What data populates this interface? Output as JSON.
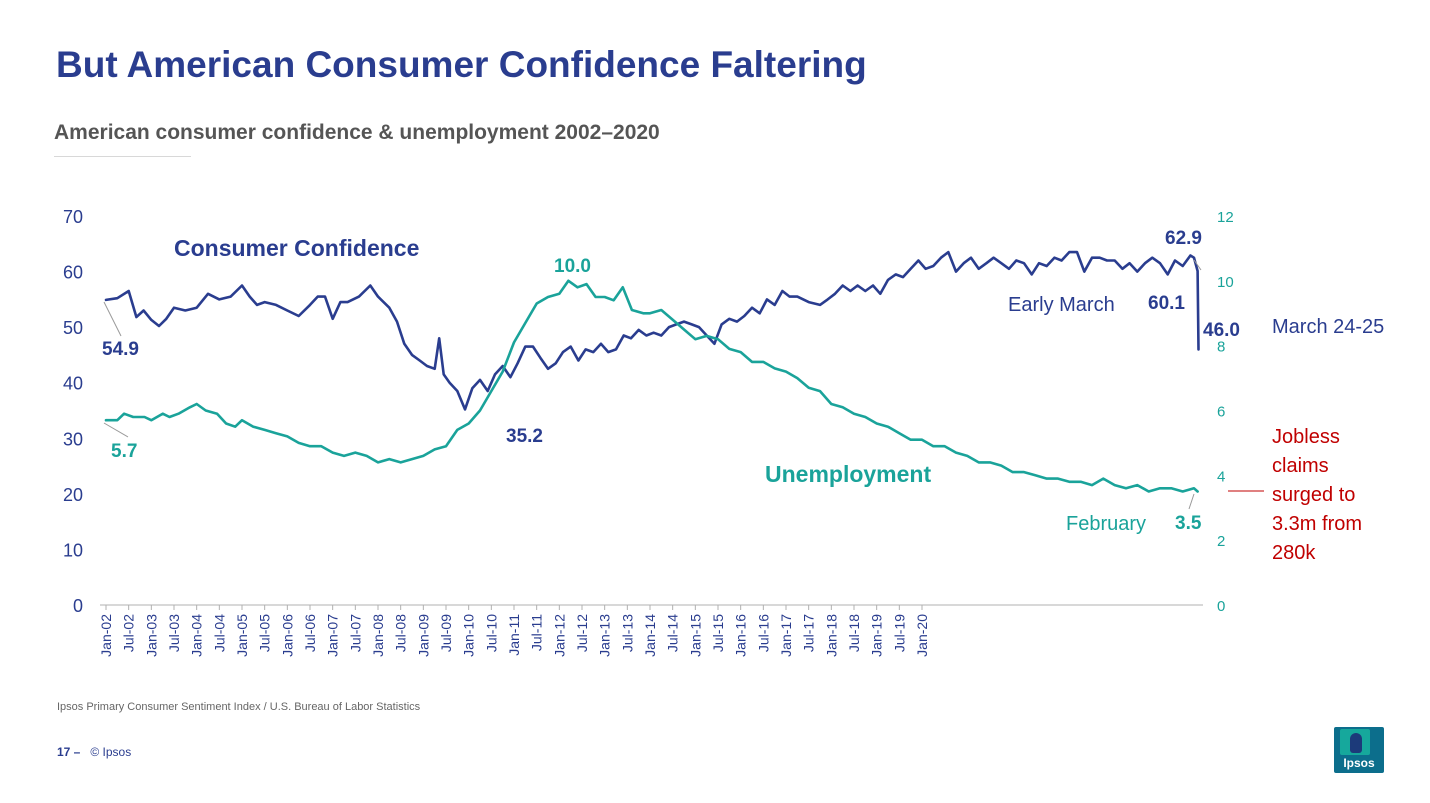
{
  "title": "But American Consumer Confidence Faltering",
  "subtitle": "American consumer confidence & unemployment 2002–2020",
  "source": "Ipsos Primary Consumer Sentiment Index / U.S. Bureau of Labor Statistics",
  "footer": {
    "page": "17 –",
    "copyright": "© Ipsos"
  },
  "logo": {
    "text": "Ipsos"
  },
  "colors": {
    "confidence": "#2a3d8f",
    "unemployment": "#1aa39a",
    "jobless": "#c00000",
    "axis_gray": "#888888"
  },
  "chart_data": {
    "type": "line",
    "title": "American consumer confidence & unemployment 2002–2020",
    "grid": false,
    "left_axis": {
      "range": [
        0,
        70
      ],
      "ticks": [
        "0",
        "10",
        "20",
        "30",
        "40",
        "50",
        "60",
        "70"
      ]
    },
    "right_axis": {
      "range": [
        0,
        12
      ],
      "ticks": [
        "0",
        "2",
        "4",
        "6",
        "8",
        "10",
        "12"
      ]
    },
    "x_tick_labels": [
      "Jan-02",
      "Jul-02",
      "Jan-03",
      "Jul-03",
      "Jan-04",
      "Jul-04",
      "Jan-05",
      "Jul-05",
      "Jan-06",
      "Jul-06",
      "Jan-07",
      "Jul-07",
      "Jan-08",
      "Jul-08",
      "Jan-09",
      "Jul-09",
      "Jan-10",
      "Jul-10",
      "Jan-11",
      "Jul-11",
      "Jan-12",
      "Jul-12",
      "Jan-13",
      "Jul-13",
      "Jan-14",
      "Jul-14",
      "Jan-15",
      "Jul-15",
      "Jan-16",
      "Jul-16",
      "Jan-17",
      "Jul-17",
      "Jan-18",
      "Jul-18",
      "Jan-19",
      "Jul-19",
      "Jan-20"
    ],
    "series": [
      {
        "name": "Consumer Confidence",
        "axis": "left",
        "points": [
          [
            2002.0,
            54.9
          ],
          [
            2002.25,
            55.2
          ],
          [
            2002.5,
            56.5
          ],
          [
            2002.67,
            51.8
          ],
          [
            2002.83,
            53.0
          ],
          [
            2003.0,
            51.3
          ],
          [
            2003.17,
            50.2
          ],
          [
            2003.33,
            51.5
          ],
          [
            2003.5,
            53.5
          ],
          [
            2003.75,
            53.0
          ],
          [
            2004.0,
            53.5
          ],
          [
            2004.25,
            56.0
          ],
          [
            2004.5,
            55.0
          ],
          [
            2004.75,
            55.5
          ],
          [
            2005.0,
            57.5
          ],
          [
            2005.17,
            55.5
          ],
          [
            2005.33,
            54.0
          ],
          [
            2005.5,
            54.5
          ],
          [
            2005.75,
            54.0
          ],
          [
            2006.0,
            53.0
          ],
          [
            2006.25,
            52.0
          ],
          [
            2006.5,
            54.0
          ],
          [
            2006.67,
            55.5
          ],
          [
            2006.83,
            55.5
          ],
          [
            2007.0,
            51.5
          ],
          [
            2007.17,
            54.5
          ],
          [
            2007.33,
            54.5
          ],
          [
            2007.58,
            55.5
          ],
          [
            2007.83,
            57.5
          ],
          [
            2008.0,
            55.5
          ],
          [
            2008.25,
            53.5
          ],
          [
            2008.42,
            51.0
          ],
          [
            2008.58,
            47.0
          ],
          [
            2008.75,
            45.0
          ],
          [
            2008.92,
            44.0
          ],
          [
            2009.08,
            43.0
          ],
          [
            2009.25,
            42.5
          ],
          [
            2009.35,
            48.0
          ],
          [
            2009.45,
            41.5
          ],
          [
            2009.58,
            40.0
          ],
          [
            2009.75,
            38.5
          ],
          [
            2009.92,
            35.2
          ],
          [
            2010.08,
            39.0
          ],
          [
            2010.25,
            40.5
          ],
          [
            2010.42,
            38.5
          ],
          [
            2010.58,
            41.5
          ],
          [
            2010.75,
            43.0
          ],
          [
            2010.92,
            41.0
          ],
          [
            2011.08,
            43.5
          ],
          [
            2011.25,
            46.5
          ],
          [
            2011.42,
            46.5
          ],
          [
            2011.58,
            44.5
          ],
          [
            2011.75,
            42.5
          ],
          [
            2011.92,
            43.5
          ],
          [
            2012.08,
            45.5
          ],
          [
            2012.25,
            46.5
          ],
          [
            2012.42,
            44.0
          ],
          [
            2012.58,
            46.0
          ],
          [
            2012.75,
            45.5
          ],
          [
            2012.92,
            47.0
          ],
          [
            2013.08,
            45.5
          ],
          [
            2013.25,
            46.0
          ],
          [
            2013.42,
            48.5
          ],
          [
            2013.58,
            48.0
          ],
          [
            2013.75,
            49.5
          ],
          [
            2013.92,
            48.5
          ],
          [
            2014.08,
            49.0
          ],
          [
            2014.25,
            48.5
          ],
          [
            2014.42,
            50.0
          ],
          [
            2014.58,
            50.5
          ],
          [
            2014.75,
            51.0
          ],
          [
            2014.92,
            50.5
          ],
          [
            2015.08,
            50.0
          ],
          [
            2015.25,
            48.5
          ],
          [
            2015.42,
            47.0
          ],
          [
            2015.58,
            50.5
          ],
          [
            2015.75,
            51.5
          ],
          [
            2015.92,
            51.0
          ],
          [
            2016.08,
            52.0
          ],
          [
            2016.25,
            53.5
          ],
          [
            2016.42,
            52.5
          ],
          [
            2016.58,
            55.0
          ],
          [
            2016.75,
            54.0
          ],
          [
            2016.92,
            56.5
          ],
          [
            2017.08,
            55.5
          ],
          [
            2017.25,
            55.5
          ],
          [
            2017.5,
            54.5
          ],
          [
            2017.75,
            54.0
          ],
          [
            2017.92,
            55.0
          ],
          [
            2018.08,
            56.0
          ],
          [
            2018.25,
            57.5
          ],
          [
            2018.42,
            56.5
          ],
          [
            2018.58,
            57.5
          ],
          [
            2018.75,
            56.5
          ],
          [
            2018.92,
            57.5
          ],
          [
            2019.08,
            56.0
          ],
          [
            2019.25,
            58.5
          ],
          [
            2019.42,
            59.5
          ],
          [
            2019.58,
            59.0
          ],
          [
            2019.75,
            60.5
          ],
          [
            2019.92,
            62.0
          ],
          [
            2020.08,
            60.5
          ],
          [
            2020.25,
            61.0
          ],
          [
            2020.42,
            62.5
          ],
          [
            2020.58,
            63.5
          ],
          [
            2020.75,
            60.0
          ],
          [
            2020.92,
            61.5
          ],
          [
            2021.08,
            62.5
          ],
          [
            2021.25,
            60.5
          ],
          [
            2021.42,
            61.5
          ],
          [
            2021.58,
            62.5
          ],
          [
            2021.75,
            61.5
          ],
          [
            2021.92,
            60.5
          ],
          [
            2022.08,
            62.0
          ],
          [
            2022.25,
            61.5
          ],
          [
            2022.42,
            59.5
          ],
          [
            2022.58,
            61.5
          ],
          [
            2022.75,
            61.0
          ],
          [
            2022.92,
            62.5
          ],
          [
            2023.08,
            62.0
          ],
          [
            2023.25,
            63.5
          ],
          [
            2023.42,
            63.5
          ],
          [
            2023.58,
            60.0
          ],
          [
            2023.75,
            62.5
          ],
          [
            2023.92,
            62.5
          ],
          [
            2024.08,
            62.0
          ],
          [
            2024.25,
            62.0
          ],
          [
            2024.42,
            60.5
          ],
          [
            2024.58,
            61.5
          ],
          [
            2024.75,
            60.0
          ],
          [
            2024.92,
            61.5
          ],
          [
            2025.08,
            62.5
          ],
          [
            2025.25,
            61.5
          ],
          [
            2025.42,
            59.5
          ],
          [
            2025.58,
            62.0
          ],
          [
            2025.75,
            61.0
          ],
          [
            2025.92,
            62.9
          ],
          [
            2026.0,
            62.5
          ],
          [
            2026.08,
            60.1
          ],
          [
            2026.1,
            46.0
          ]
        ]
      },
      {
        "name": "Unemployment",
        "axis": "right",
        "points": [
          [
            2002.0,
            5.7
          ],
          [
            2002.25,
            5.7
          ],
          [
            2002.4,
            5.9
          ],
          [
            2002.6,
            5.8
          ],
          [
            2002.85,
            5.8
          ],
          [
            2003.0,
            5.7
          ],
          [
            2003.25,
            5.9
          ],
          [
            2003.4,
            5.8
          ],
          [
            2003.6,
            5.9
          ],
          [
            2003.85,
            6.1
          ],
          [
            2004.0,
            6.2
          ],
          [
            2004.2,
            6.0
          ],
          [
            2004.45,
            5.9
          ],
          [
            2004.65,
            5.6
          ],
          [
            2004.85,
            5.5
          ],
          [
            2005.0,
            5.7
          ],
          [
            2005.25,
            5.5
          ],
          [
            2005.5,
            5.4
          ],
          [
            2005.75,
            5.3
          ],
          [
            2006.0,
            5.2
          ],
          [
            2006.25,
            5.0
          ],
          [
            2006.5,
            4.9
          ],
          [
            2006.75,
            4.9
          ],
          [
            2007.0,
            4.7
          ],
          [
            2007.25,
            4.6
          ],
          [
            2007.5,
            4.7
          ],
          [
            2007.75,
            4.6
          ],
          [
            2008.0,
            4.4
          ],
          [
            2008.25,
            4.5
          ],
          [
            2008.5,
            4.4
          ],
          [
            2008.75,
            4.5
          ],
          [
            2009.0,
            4.6
          ],
          [
            2009.25,
            4.8
          ],
          [
            2009.5,
            4.9
          ],
          [
            2009.75,
            5.4
          ],
          [
            2010.0,
            5.6
          ],
          [
            2010.25,
            6.0
          ],
          [
            2010.5,
            6.6
          ],
          [
            2010.75,
            7.2
          ],
          [
            2011.0,
            8.1
          ],
          [
            2011.25,
            8.7
          ],
          [
            2011.5,
            9.3
          ],
          [
            2011.75,
            9.5
          ],
          [
            2012.0,
            9.6
          ],
          [
            2012.2,
            10.0
          ],
          [
            2012.4,
            9.8
          ],
          [
            2012.6,
            9.9
          ],
          [
            2012.8,
            9.5
          ],
          [
            2013.0,
            9.5
          ],
          [
            2013.2,
            9.4
          ],
          [
            2013.4,
            9.8
          ],
          [
            2013.6,
            9.1
          ],
          [
            2013.85,
            9.0
          ],
          [
            2014.0,
            9.0
          ],
          [
            2014.25,
            9.1
          ],
          [
            2014.5,
            8.8
          ],
          [
            2014.75,
            8.5
          ],
          [
            2015.0,
            8.2
          ],
          [
            2015.25,
            8.3
          ],
          [
            2015.5,
            8.2
          ],
          [
            2015.75,
            7.9
          ],
          [
            2016.0,
            7.8
          ],
          [
            2016.25,
            7.5
          ],
          [
            2016.5,
            7.5
          ],
          [
            2016.75,
            7.3
          ],
          [
            2017.0,
            7.2
          ],
          [
            2017.25,
            7.0
          ],
          [
            2017.5,
            6.7
          ],
          [
            2017.75,
            6.6
          ],
          [
            2018.0,
            6.2
          ],
          [
            2018.25,
            6.1
          ],
          [
            2018.5,
            5.9
          ],
          [
            2018.75,
            5.8
          ],
          [
            2019.0,
            5.6
          ],
          [
            2019.25,
            5.5
          ],
          [
            2019.5,
            5.3
          ],
          [
            2019.75,
            5.1
          ],
          [
            2020.0,
            5.1
          ],
          [
            2020.25,
            4.9
          ],
          [
            2020.5,
            4.9
          ],
          [
            2020.75,
            4.7
          ],
          [
            2021.0,
            4.6
          ],
          [
            2021.25,
            4.4
          ],
          [
            2021.5,
            4.4
          ],
          [
            2021.75,
            4.3
          ],
          [
            2022.0,
            4.1
          ],
          [
            2022.25,
            4.1
          ],
          [
            2022.5,
            4.0
          ],
          [
            2022.75,
            3.9
          ],
          [
            2023.0,
            3.9
          ],
          [
            2023.25,
            3.8
          ],
          [
            2023.5,
            3.8
          ],
          [
            2023.75,
            3.7
          ],
          [
            2024.0,
            3.9
          ],
          [
            2024.25,
            3.7
          ],
          [
            2024.5,
            3.6
          ],
          [
            2024.75,
            3.7
          ],
          [
            2025.0,
            3.5
          ],
          [
            2025.25,
            3.6
          ],
          [
            2025.5,
            3.6
          ],
          [
            2025.75,
            3.5
          ],
          [
            2026.0,
            3.6
          ],
          [
            2026.08,
            3.5
          ]
        ]
      }
    ],
    "annotations": {
      "cc_label": "Consumer Confidence",
      "un_label": "Unemployment",
      "cc_start": "54.9",
      "un_start": "5.7",
      "un_peak": "10.0",
      "cc_trough": "35.2",
      "cc_peak": "62.9",
      "early_march_label": "Early March",
      "early_march_value": "60.1",
      "march_value": "46.0",
      "march_label": "March 24-25",
      "february_label": "February",
      "february_value": "3.5",
      "jobless_lines": [
        "Jobless",
        "claims",
        "surged to",
        "3.3m from",
        "280k"
      ]
    }
  }
}
